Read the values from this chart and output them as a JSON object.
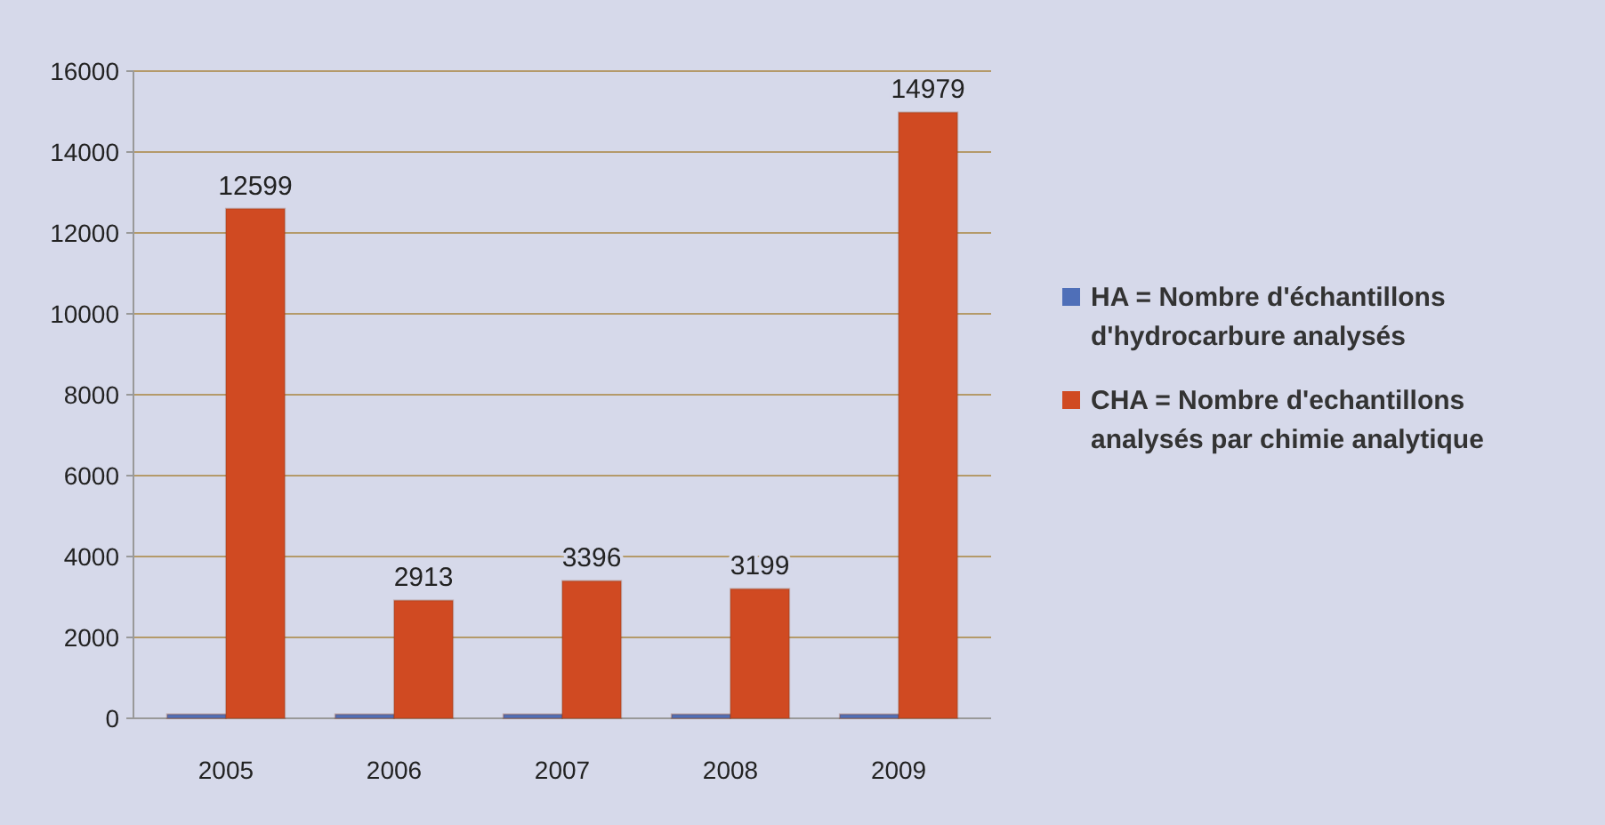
{
  "chart_data": {
    "type": "bar",
    "categories": [
      "2005",
      "2006",
      "2007",
      "2008",
      "2009"
    ],
    "series": [
      {
        "name": "HA = Nombre d'échantillons d'hydrocarbure analysés",
        "color": "#4f6fb8",
        "values": [
          100,
          100,
          100,
          100,
          100
        ]
      },
      {
        "name": "CHA = Nombre d'echantillons analysés par chimie analytique",
        "color": "#d04a22",
        "values": [
          12599,
          2913,
          3396,
          3199,
          14979
        ],
        "value_labels": [
          "12599",
          "2913",
          "3396",
          "3199",
          "14979"
        ]
      }
    ],
    "ylim": [
      0,
      16000
    ],
    "yticks": [
      0,
      2000,
      4000,
      6000,
      8000,
      10000,
      12000,
      14000,
      16000
    ],
    "grid": "y",
    "legend": "right"
  }
}
